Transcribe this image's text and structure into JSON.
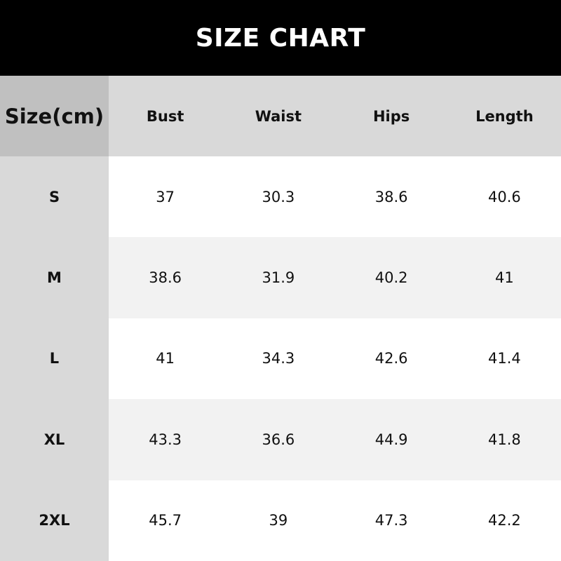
{
  "title": "SIZE CHART",
  "colors": {
    "header_bg": "#000000",
    "header_row_bg": "#d9d9d9",
    "corner_bg": "#c0c0c0",
    "alt_row_bg": "#f2f2f2"
  },
  "table": {
    "headers": [
      "Size(cm)",
      "Bust",
      "Waist",
      "Hips",
      "Length"
    ],
    "rows": [
      [
        "S",
        "37",
        "30.3",
        "38.6",
        "40.6"
      ],
      [
        "M",
        "38.6",
        "31.9",
        "40.2",
        "41"
      ],
      [
        "L",
        "41",
        "34.3",
        "42.6",
        "41.4"
      ],
      [
        "XL",
        "43.3",
        "36.6",
        "44.9",
        "41.8"
      ],
      [
        "2XL",
        "45.7",
        "39",
        "47.3",
        "42.2"
      ]
    ]
  }
}
